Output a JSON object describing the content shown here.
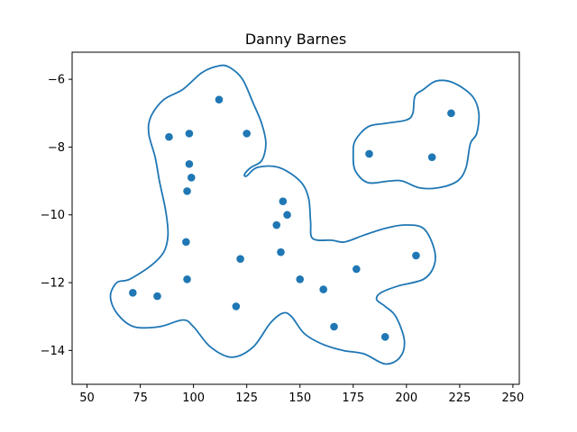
{
  "chart_data": {
    "type": "scatter",
    "title": "Danny Barnes",
    "xlabel": "",
    "ylabel": "",
    "xlim": [
      43,
      253
    ],
    "ylim": [
      -15.0,
      -5.2
    ],
    "xticks": [
      50,
      75,
      100,
      125,
      150,
      175,
      200,
      225,
      250
    ],
    "yticks": [
      -14,
      -12,
      -10,
      -8,
      -6
    ],
    "grid": false,
    "color": "#1f77b4",
    "points": [
      {
        "x": 112,
        "y": -6.6
      },
      {
        "x": 125,
        "y": -7.6
      },
      {
        "x": 88.5,
        "y": -7.7
      },
      {
        "x": 98,
        "y": -7.6
      },
      {
        "x": 98,
        "y": -8.5
      },
      {
        "x": 99,
        "y": -8.9
      },
      {
        "x": 97,
        "y": -9.3
      },
      {
        "x": 142,
        "y": -9.6
      },
      {
        "x": 144,
        "y": -10.0
      },
      {
        "x": 139,
        "y": -10.3
      },
      {
        "x": 96.5,
        "y": -10.8
      },
      {
        "x": 141,
        "y": -11.1
      },
      {
        "x": 122,
        "y": -11.3
      },
      {
        "x": 176.5,
        "y": -11.6
      },
      {
        "x": 204.5,
        "y": -11.2
      },
      {
        "x": 97,
        "y": -11.9
      },
      {
        "x": 150,
        "y": -11.9
      },
      {
        "x": 161,
        "y": -12.2
      },
      {
        "x": 71.5,
        "y": -12.3
      },
      {
        "x": 83,
        "y": -12.4
      },
      {
        "x": 120,
        "y": -12.7
      },
      {
        "x": 166,
        "y": -13.3
      },
      {
        "x": 190,
        "y": -13.6
      },
      {
        "x": 182.5,
        "y": -8.2
      },
      {
        "x": 212,
        "y": -8.3
      },
      {
        "x": 221,
        "y": -7.0
      }
    ],
    "contours": [
      [
        [
          70,
          -11.9
        ],
        [
          80,
          -11.5
        ],
        [
          86,
          -11.1
        ],
        [
          88,
          -10.6
        ],
        [
          87,
          -9.9
        ],
        [
          84,
          -9.0
        ],
        [
          82,
          -8.3
        ],
        [
          79,
          -7.6
        ],
        [
          80,
          -7.1
        ],
        [
          86,
          -6.6
        ],
        [
          95,
          -6.3
        ],
        [
          104,
          -5.8
        ],
        [
          112,
          -5.6
        ],
        [
          117,
          -5.65
        ],
        [
          123,
          -6.0
        ],
        [
          128,
          -6.7
        ],
        [
          132,
          -7.3
        ],
        [
          134,
          -7.9
        ],
        [
          132,
          -8.4
        ],
        [
          127,
          -8.6
        ],
        [
          124,
          -8.8
        ],
        [
          125,
          -8.85
        ],
        [
          130,
          -8.6
        ],
        [
          140,
          -8.6
        ],
        [
          150,
          -9.0
        ],
        [
          154,
          -9.5
        ],
        [
          155,
          -10.2
        ],
        [
          156,
          -10.7
        ],
        [
          165,
          -10.75
        ],
        [
          171,
          -10.8
        ],
        [
          180,
          -10.6
        ],
        [
          190,
          -10.4
        ],
        [
          199,
          -10.3
        ],
        [
          208,
          -10.4
        ],
        [
          213,
          -11.0
        ],
        [
          213,
          -11.5
        ],
        [
          208,
          -11.9
        ],
        [
          196,
          -12.1
        ],
        [
          188,
          -12.3
        ],
        [
          186,
          -12.5
        ],
        [
          190,
          -12.7
        ],
        [
          195,
          -13.0
        ],
        [
          199,
          -13.7
        ],
        [
          197,
          -14.2
        ],
        [
          190,
          -14.4
        ],
        [
          180,
          -14.1
        ],
        [
          170,
          -14.0
        ],
        [
          160,
          -13.8
        ],
        [
          152,
          -13.5
        ],
        [
          146,
          -13.0
        ],
        [
          142,
          -12.9
        ],
        [
          136,
          -13.2
        ],
        [
          128,
          -13.9
        ],
        [
          118,
          -14.2
        ],
        [
          108,
          -13.9
        ],
        [
          100,
          -13.3
        ],
        [
          95,
          -13.1
        ],
        [
          84,
          -13.3
        ],
        [
          72,
          -13.3
        ],
        [
          64,
          -12.9
        ],
        [
          61,
          -12.4
        ],
        [
          64,
          -12.0
        ],
        [
          70,
          -11.9
        ]
      ],
      [
        [
          175,
          -8.2
        ],
        [
          176,
          -7.8
        ],
        [
          182,
          -7.4
        ],
        [
          190,
          -7.3
        ],
        [
          200,
          -7.2
        ],
        [
          203,
          -7.0
        ],
        [
          204,
          -6.5
        ],
        [
          208,
          -6.3
        ],
        [
          214,
          -6.05
        ],
        [
          222,
          -6.1
        ],
        [
          231,
          -6.5
        ],
        [
          234,
          -7.0
        ],
        [
          233,
          -7.6
        ],
        [
          230,
          -7.9
        ],
        [
          228,
          -8.6
        ],
        [
          224,
          -9.0
        ],
        [
          215,
          -9.2
        ],
        [
          206,
          -9.2
        ],
        [
          198,
          -9.0
        ],
        [
          192,
          -9.0
        ],
        [
          182,
          -9.05
        ],
        [
          176,
          -8.7
        ],
        [
          175,
          -8.2
        ]
      ]
    ]
  }
}
